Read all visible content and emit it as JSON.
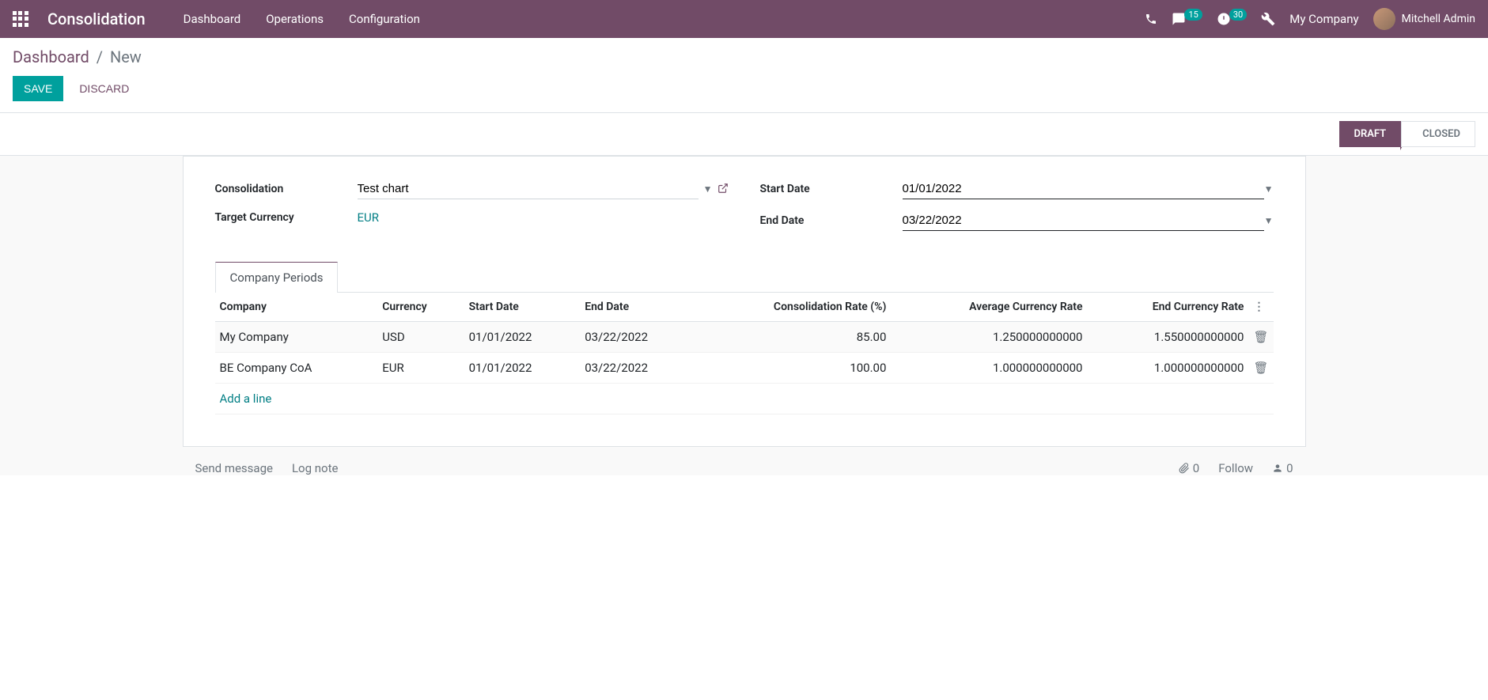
{
  "navbar": {
    "app_title": "Consolidation",
    "menu": [
      "Dashboard",
      "Operations",
      "Configuration"
    ],
    "msg_badge": "15",
    "activity_badge": "30",
    "company": "My Company",
    "user": "Mitchell Admin"
  },
  "breadcrumb": {
    "root": "Dashboard",
    "current": "New"
  },
  "buttons": {
    "save": "SAVE",
    "discard": "DISCARD"
  },
  "status": {
    "draft": "DRAFT",
    "closed": "CLOSED"
  },
  "form": {
    "consolidation_label": "Consolidation",
    "consolidation_value": "Test chart",
    "target_currency_label": "Target Currency",
    "target_currency_value": "EUR",
    "start_date_label": "Start Date",
    "start_date_value": "01/01/2022",
    "end_date_label": "End Date",
    "end_date_value": "03/22/2022"
  },
  "tab_label": "Company Periods",
  "table": {
    "headers": {
      "company": "Company",
      "currency": "Currency",
      "start_date": "Start Date",
      "end_date": "End Date",
      "rate": "Consolidation Rate (%)",
      "avg_rate": "Average Currency Rate",
      "end_rate": "End Currency Rate"
    },
    "rows": [
      {
        "company": "My Company",
        "currency": "USD",
        "start": "01/01/2022",
        "end": "03/22/2022",
        "rate": "85.00",
        "avg": "1.250000000000",
        "end_rate": "1.550000000000"
      },
      {
        "company": "BE Company CoA",
        "currency": "EUR",
        "start": "01/01/2022",
        "end": "03/22/2022",
        "rate": "100.00",
        "avg": "1.000000000000",
        "end_rate": "1.000000000000"
      }
    ],
    "add_line": "Add a line"
  },
  "chatter": {
    "send": "Send message",
    "log": "Log note",
    "attach": "0",
    "follow": "Follow",
    "followers": "0"
  }
}
